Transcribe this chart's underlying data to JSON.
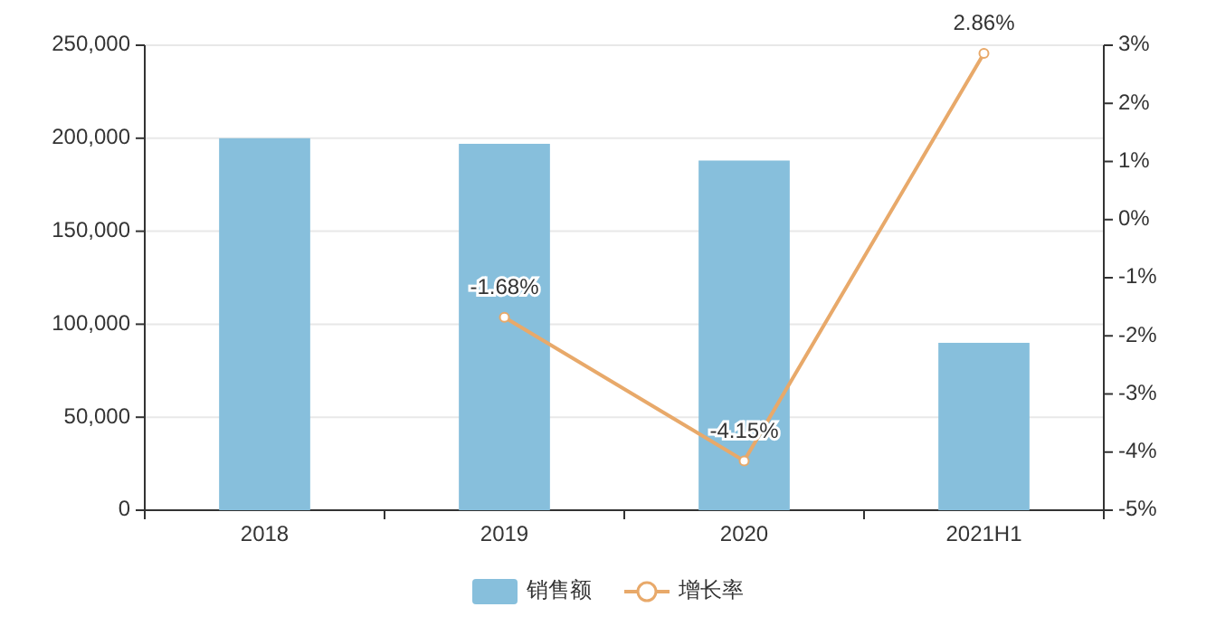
{
  "chart_data": {
    "type": "bar",
    "categories": [
      "2018",
      "2019",
      "2020",
      "2021H1"
    ],
    "series": [
      {
        "name": "销售额",
        "color": "#87bfdc",
        "values": [
          200000,
          197000,
          188000,
          90000
        ]
      },
      {
        "name": "增长率",
        "type": "line",
        "axis": "y2",
        "color": "#e8a96a",
        "values": [
          null,
          -1.68,
          -4.15,
          2.86
        ],
        "value_labels": [
          null,
          "-1.68%",
          "-4.15%",
          "2.86%"
        ]
      }
    ],
    "ylim": [
      0,
      250000
    ],
    "yticks": [
      {
        "value": 0,
        "label": "0"
      },
      {
        "value": 50000,
        "label": "50,000"
      },
      {
        "value": 100000,
        "label": "100,000"
      },
      {
        "value": 150000,
        "label": "150,000"
      },
      {
        "value": 200000,
        "label": "200,000"
      },
      {
        "value": 250000,
        "label": "250,000"
      }
    ],
    "y2lim": [
      -5,
      3
    ],
    "y2ticks": [
      {
        "value": -5,
        "label": "-5%"
      },
      {
        "value": -4,
        "label": "-4%"
      },
      {
        "value": -3,
        "label": "-3%"
      },
      {
        "value": -2,
        "label": "-2%"
      },
      {
        "value": -1,
        "label": "-1%"
      },
      {
        "value": 0,
        "label": "0%"
      },
      {
        "value": 1,
        "label": "1%"
      },
      {
        "value": 2,
        "label": "2%"
      },
      {
        "value": 3,
        "label": "3%"
      }
    ],
    "grid": "y",
    "legend": "bottom",
    "marker": "circle",
    "line_style": "solid"
  }
}
